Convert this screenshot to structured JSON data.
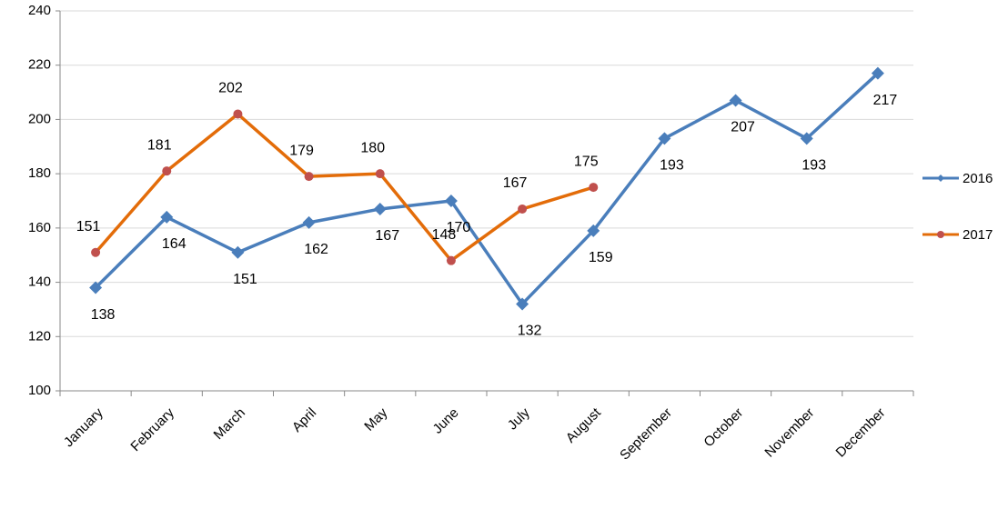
{
  "chart_data": {
    "type": "line",
    "categories": [
      "January",
      "February",
      "March",
      "April",
      "May",
      "June",
      "July",
      "August",
      "September",
      "October",
      "November",
      "December"
    ],
    "series": [
      {
        "name": "2016",
        "color": "#4a7ebb",
        "marker": "diamond",
        "values": [
          138,
          164,
          151,
          162,
          167,
          170,
          132,
          159,
          193,
          207,
          193,
          217
        ]
      },
      {
        "name": "2017",
        "color": "#e36c09",
        "marker": "circle",
        "values": [
          151,
          181,
          202,
          179,
          180,
          148,
          167,
          175,
          null,
          null,
          null,
          null
        ]
      }
    ],
    "ylim": [
      100,
      240
    ],
    "yticks": [
      100,
      120,
      140,
      160,
      180,
      200,
      220,
      240
    ],
    "grid": true,
    "legend": "right",
    "data_labels": true
  }
}
